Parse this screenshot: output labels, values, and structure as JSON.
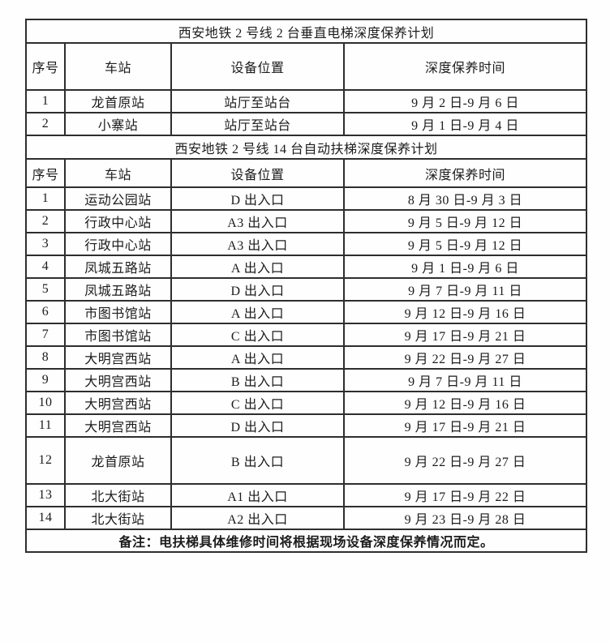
{
  "colors": {
    "background": "#ffffff",
    "border": "#2e2e2e",
    "text": "#1c1c1c"
  },
  "table1": {
    "title": "西安地铁 2 号线 2 台垂直电梯深度保养计划",
    "headers": [
      "序号",
      "车站",
      "设备位置",
      "深度保养时间"
    ],
    "rows": [
      [
        "1",
        "龙首原站",
        "站厅至站台",
        "9 月 2 日-9 月 6 日"
      ],
      [
        "2",
        "小寨站",
        "站厅至站台",
        "9 月 1 日-9 月 4 日"
      ]
    ]
  },
  "table2": {
    "title": "西安地铁 2 号线 14 台自动扶梯深度保养计划",
    "headers": [
      "序号",
      "车站",
      "设备位置",
      "深度保养时间"
    ],
    "rows": [
      [
        "1",
        "运动公园站",
        "D 出入口",
        "8 月 30 日-9 月 3 日"
      ],
      [
        "2",
        "行政中心站",
        "A3 出入口",
        "9 月 5 日-9 月 12 日"
      ],
      [
        "3",
        "行政中心站",
        "A3 出入口",
        "9 月 5 日-9 月 12 日"
      ],
      [
        "4",
        "凤城五路站",
        "A 出入口",
        "9 月 1 日-9 月 6 日"
      ],
      [
        "5",
        "凤城五路站",
        "D 出入口",
        "9 月 7 日-9 月 11 日"
      ],
      [
        "6",
        "市图书馆站",
        "A 出入口",
        "9 月 12 日-9 月 16 日"
      ],
      [
        "7",
        "市图书馆站",
        "C 出入口",
        "9 月 17 日-9 月 21 日"
      ],
      [
        "8",
        "大明宫西站",
        "A 出入口",
        "9 月 22 日-9 月 27 日"
      ],
      [
        "9",
        "大明宫西站",
        "B 出入口",
        "9 月 7 日-9 月 11 日"
      ],
      [
        "10",
        "大明宫西站",
        "C 出入口",
        "9 月 12 日-9 月 16 日"
      ],
      [
        "11",
        "大明宫西站",
        "D 出入口",
        "9 月 17 日-9 月 21 日"
      ],
      [
        "12",
        "龙首原站",
        "B 出入口",
        "9 月 22 日-9 月 27 日"
      ],
      [
        "13",
        "北大街站",
        "A1 出入口",
        "9 月 17 日-9 月 22 日"
      ],
      [
        "14",
        "北大街站",
        "A2 出入口",
        "9 月 23 日-9 月 28 日"
      ]
    ]
  },
  "footer": {
    "note": "备注：电扶梯具体维修时间将根据现场设备深度保养情况而定。"
  }
}
